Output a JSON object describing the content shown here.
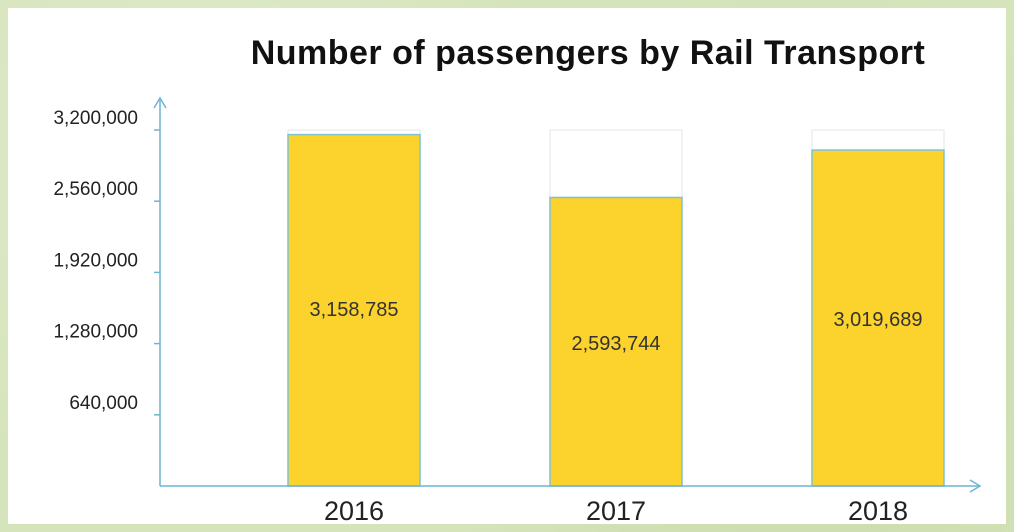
{
  "chart_data": {
    "type": "bar",
    "title": "Number of passengers by Rail Transport",
    "categories": [
      "2016",
      "2017",
      "2018"
    ],
    "values": [
      3158785,
      2593744,
      3019689
    ],
    "data_labels": [
      "3,158,785",
      "2,593,744",
      "3,019,689"
    ],
    "ylim": [
      0,
      3200000
    ],
    "yticks": [
      640000,
      1280000,
      1920000,
      2560000,
      3200000
    ],
    "ytick_labels": [
      "640,000",
      "1,280,000",
      "1,920,000",
      "2,560,000",
      "3,200,000"
    ],
    "xlabel": "",
    "ylabel": "",
    "grid": false,
    "legend": "none",
    "colors": {
      "bar_fill": "#fcd22c",
      "bar_outline": "#7ec3cf",
      "axis": "#6fb4d2",
      "background_bar": "#ffffff"
    }
  }
}
